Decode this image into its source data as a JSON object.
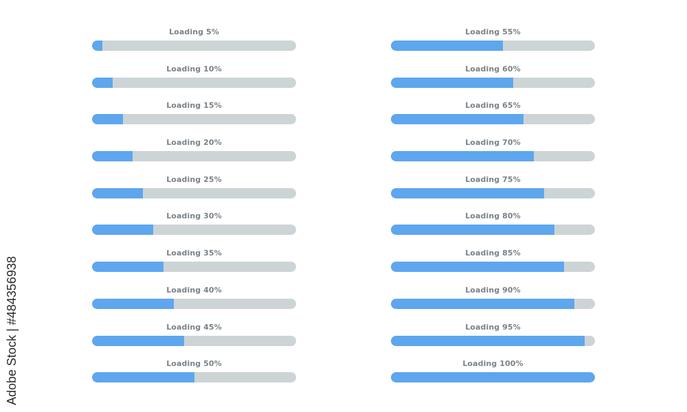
{
  "colors": {
    "fill": "#5ea6ee",
    "track": "#ccd4d6",
    "label": "#7a8288",
    "background": "#ffffff"
  },
  "left_column": [
    {
      "label": "Loading 5%",
      "progress": 5
    },
    {
      "label": "Loading 10%",
      "progress": 10
    },
    {
      "label": "Loading 15%",
      "progress": 15
    },
    {
      "label": "Loading 20%",
      "progress": 20
    },
    {
      "label": "Loading 25%",
      "progress": 25
    },
    {
      "label": "Loading 30%",
      "progress": 30
    },
    {
      "label": "Loading 35%",
      "progress": 35
    },
    {
      "label": "Loading 40%",
      "progress": 40
    },
    {
      "label": "Loading 45%",
      "progress": 45
    },
    {
      "label": "Loading 50%",
      "progress": 50
    }
  ],
  "right_column": [
    {
      "label": "Loading 55%",
      "progress": 55
    },
    {
      "label": "Loading 60%",
      "progress": 60
    },
    {
      "label": "Loading 65%",
      "progress": 65
    },
    {
      "label": "Loading 70%",
      "progress": 70
    },
    {
      "label": "Loading 75%",
      "progress": 75
    },
    {
      "label": "Loading 80%",
      "progress": 80
    },
    {
      "label": "Loading 85%",
      "progress": 85
    },
    {
      "label": "Loading 90%",
      "progress": 90
    },
    {
      "label": "Loading 95%",
      "progress": 95
    },
    {
      "label": "Loading 100%",
      "progress": 100
    }
  ],
  "watermark": {
    "text": "Adobe Stock | #484356938"
  }
}
